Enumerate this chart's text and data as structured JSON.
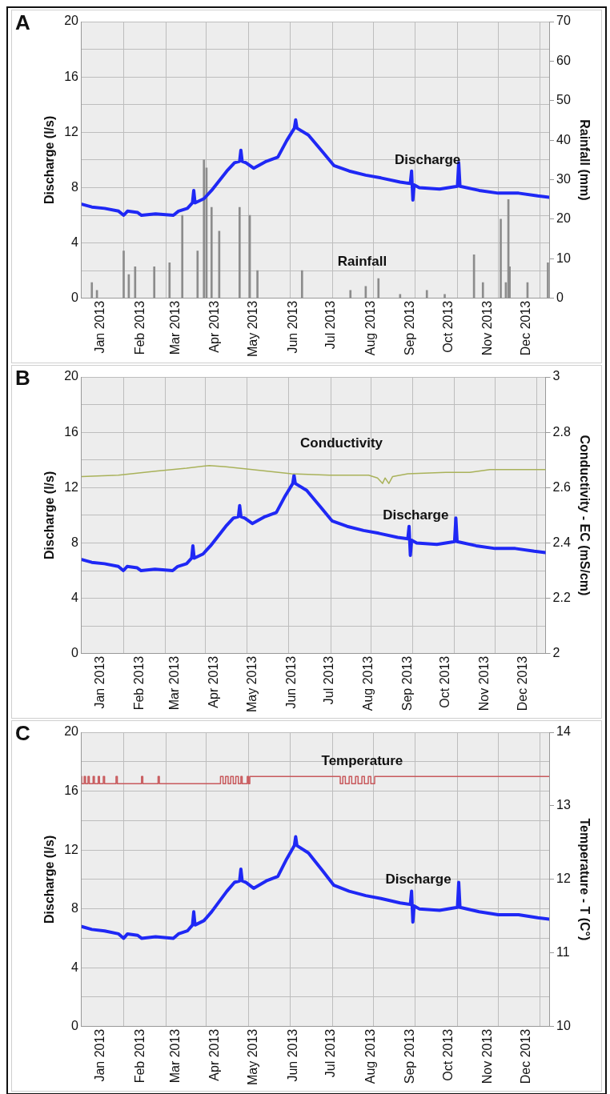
{
  "chart_data": [
    {
      "type": "line",
      "title": "A",
      "ylabel": "Discharge (l/s)",
      "y2label": "Rainfall (mm)",
      "grid": true,
      "marker": "none",
      "xlim": [
        "2012-12-17",
        "2013-12-19"
      ],
      "xticks": [
        {
          "value": "2013-01-01",
          "label": "Jan 2013"
        },
        {
          "value": "2013-01-19",
          "label": null
        },
        {
          "value": "2013-02-01",
          "label": "Feb 2013"
        },
        {
          "value": "2013-02-21",
          "label": null
        },
        {
          "value": "2013-03-01",
          "label": "Mar 2013"
        },
        {
          "value": "2013-03-25",
          "label": null
        },
        {
          "value": "2013-04-01",
          "label": "Apr 2013"
        },
        {
          "value": "2013-04-27",
          "label": null
        },
        {
          "value": "2013-05-01",
          "label": "May 2013"
        },
        {
          "value": "2013-05-30",
          "label": null
        },
        {
          "value": "2013-06-01",
          "label": "Jun 2013"
        },
        {
          "value": "2013-07-01",
          "label": "Jul 2013"
        },
        {
          "value": "2013-07-02",
          "label": null
        },
        {
          "value": "2013-08-01",
          "label": "Aug 2013"
        },
        {
          "value": "2013-08-03",
          "label": null
        },
        {
          "value": "2013-09-01",
          "label": "Sep 2013"
        },
        {
          "value": "2013-09-05",
          "label": null
        },
        {
          "value": "2013-10-01",
          "label": "Oct 2013"
        },
        {
          "value": "2013-10-08",
          "label": null
        },
        {
          "value": "2013-11-01",
          "label": "Nov 2013"
        },
        {
          "value": "2013-11-09",
          "label": null
        },
        {
          "value": "2013-12-01",
          "label": "Dec 2013"
        },
        {
          "value": "2013-12-12",
          "label": null
        }
      ],
      "ylim": [
        0,
        20
      ],
      "yticks": [
        0,
        {
          "value": 2,
          "label": null
        },
        4,
        {
          "value": 6,
          "label": null
        },
        8,
        {
          "value": 10,
          "label": null
        },
        12,
        {
          "value": 14,
          "label": null
        },
        16,
        {
          "value": 18,
          "label": null
        },
        20
      ],
      "y2lim": [
        0,
        70
      ],
      "y2ticks": [
        0,
        10,
        20,
        30,
        40,
        50,
        60,
        70
      ],
      "series": [
        {
          "name": "Rainfall",
          "type": "bar",
          "axis": "y2",
          "color": "#8c8c8c",
          "x": [
            "2012-12-25",
            "2012-12-29",
            "2013-01-19",
            "2013-01-23",
            "2013-01-28",
            "2013-02-12",
            "2013-02-24",
            "2013-03-05",
            "2013-03-06",
            "2013-03-18",
            "2013-03-23",
            "2013-03-25",
            "2013-03-29",
            "2013-04-04",
            "2013-04-20",
            "2013-04-28",
            "2013-05-04",
            "2013-06-08",
            "2013-07-16",
            "2013-07-28",
            "2013-08-07",
            "2013-08-24",
            "2013-09-14",
            "2013-09-28",
            "2013-10-21",
            "2013-10-28",
            "2013-11-11",
            "2013-11-15",
            "2013-11-17",
            "2013-11-18",
            "2013-12-02",
            "2013-12-18"
          ],
          "values": [
            4,
            2,
            12,
            6,
            8,
            8,
            9,
            null,
            21,
            12,
            35,
            33,
            23,
            17,
            23,
            21,
            7,
            7,
            2,
            3,
            5,
            1,
            2,
            1,
            11,
            4,
            20,
            4,
            25,
            8,
            4,
            9
          ]
        },
        {
          "name": "Discharge",
          "color": "#1f28f5",
          "x": [
            "2012-12-17",
            "2012-12-25",
            "2013-01-04",
            "2013-01-15",
            "2013-01-19",
            "2013-01-22",
            "2013-01-30",
            "2013-02-02",
            "2013-02-13",
            "2013-02-27",
            "2013-03-03",
            "2013-03-10",
            "2013-03-14",
            "2013-03-15",
            "2013-03-16",
            "2013-03-23",
            "2013-03-29",
            "2013-04-10",
            "2013-04-16",
            "2013-04-20",
            "2013-04-21",
            "2013-04-22",
            "2013-04-25",
            "2013-05-01",
            "2013-05-11",
            "2013-05-20",
            "2013-05-27",
            "2013-06-02",
            "2013-06-03",
            "2013-06-04",
            "2013-06-13",
            "2013-06-24",
            "2013-07-03",
            "2013-07-15",
            "2013-07-28",
            "2013-08-09",
            "2013-08-24",
            "2013-09-01",
            "2013-09-02",
            "2013-09-03",
            "2013-09-04",
            "2013-09-08",
            "2013-09-24",
            "2013-10-08",
            "2013-10-09",
            "2013-10-10",
            "2013-10-25",
            "2013-11-09",
            "2013-11-25",
            "2013-12-10",
            "2013-12-19"
          ],
          "values": [
            6.8,
            6.6,
            6.5,
            6.3,
            6.0,
            6.3,
            6.2,
            6.0,
            6.1,
            6.0,
            6.3,
            6.5,
            6.9,
            7.8,
            6.9,
            7.2,
            7.8,
            9.2,
            9.8,
            9.9,
            10.7,
            9.9,
            9.8,
            9.4,
            9.9,
            10.2,
            11.4,
            12.3,
            12.9,
            12.3,
            11.8,
            10.6,
            9.6,
            9.2,
            8.9,
            8.7,
            8.4,
            8.3,
            9.2,
            7.1,
            8.2,
            8.0,
            7.9,
            8.1,
            9.8,
            8.1,
            7.8,
            7.6,
            7.6,
            7.4,
            7.3
          ]
        }
      ]
    },
    {
      "type": "line",
      "title": "B",
      "ylabel": "Discharge (l/s)",
      "y2label": "Conductivity - EC (mS/cm)",
      "grid": true,
      "marker": "none",
      "xlim": [
        "2012-12-17",
        "2013-12-19"
      ],
      "xticks": [
        {
          "value": "2013-01-01",
          "label": "Jan 2013"
        },
        {
          "value": "2013-01-19",
          "label": null
        },
        {
          "value": "2013-02-01",
          "label": "Feb 2013"
        },
        {
          "value": "2013-02-21",
          "label": null
        },
        {
          "value": "2013-03-01",
          "label": "Mar 2013"
        },
        {
          "value": "2013-03-25",
          "label": null
        },
        {
          "value": "2013-04-01",
          "label": "Apr 2013"
        },
        {
          "value": "2013-04-27",
          "label": null
        },
        {
          "value": "2013-05-01",
          "label": "May 2013"
        },
        {
          "value": "2013-05-30",
          "label": null
        },
        {
          "value": "2013-06-01",
          "label": "Jun 2013"
        },
        {
          "value": "2013-07-01",
          "label": "Jul 2013"
        },
        {
          "value": "2013-07-02",
          "label": null
        },
        {
          "value": "2013-08-01",
          "label": "Aug 2013"
        },
        {
          "value": "2013-08-03",
          "label": null
        },
        {
          "value": "2013-09-01",
          "label": "Sep 2013"
        },
        {
          "value": "2013-09-05",
          "label": null
        },
        {
          "value": "2013-10-01",
          "label": "Oct 2013"
        },
        {
          "value": "2013-10-08",
          "label": null
        },
        {
          "value": "2013-11-01",
          "label": "Nov 2013"
        },
        {
          "value": "2013-11-09",
          "label": null
        },
        {
          "value": "2013-12-01",
          "label": "Dec 2013"
        },
        {
          "value": "2013-12-12",
          "label": null
        }
      ],
      "ylim": [
        0,
        20
      ],
      "yticks": [
        0,
        {
          "value": 2,
          "label": null
        },
        4,
        {
          "value": 6,
          "label": null
        },
        8,
        {
          "value": 10,
          "label": null
        },
        12,
        {
          "value": 14,
          "label": null
        },
        16,
        {
          "value": 18,
          "label": null
        },
        20
      ],
      "y2lim": [
        2,
        3
      ],
      "y2ticks": [
        2,
        2.2,
        2.4,
        2.6,
        2.8,
        3
      ],
      "series": [
        {
          "name": "Conductivity",
          "axis": "y2",
          "color": "#a9b25a",
          "x": [
            "2012-12-17",
            "2013-01-15",
            "2013-02-15",
            "2013-03-10",
            "2013-03-28",
            "2013-04-10",
            "2013-05-01",
            "2013-06-01",
            "2013-07-01",
            "2013-08-01",
            "2013-08-08",
            "2013-08-12",
            "2013-08-14",
            "2013-08-17",
            "2013-08-20",
            "2013-09-01",
            "2013-10-01",
            "2013-10-20",
            "2013-11-05",
            "2013-12-19"
          ],
          "values": [
            2.64,
            2.645,
            2.66,
            2.67,
            2.68,
            2.675,
            2.665,
            2.65,
            2.645,
            2.645,
            2.635,
            2.615,
            2.635,
            2.615,
            2.64,
            2.65,
            2.655,
            2.655,
            2.665,
            2.665
          ]
        },
        {
          "name": "Discharge",
          "color": "#1f28f5",
          "x": [
            "2012-12-17",
            "2012-12-25",
            "2013-01-04",
            "2013-01-15",
            "2013-01-19",
            "2013-01-22",
            "2013-01-30",
            "2013-02-02",
            "2013-02-13",
            "2013-02-27",
            "2013-03-03",
            "2013-03-10",
            "2013-03-14",
            "2013-03-15",
            "2013-03-16",
            "2013-03-23",
            "2013-03-29",
            "2013-04-10",
            "2013-04-16",
            "2013-04-20",
            "2013-04-21",
            "2013-04-22",
            "2013-04-25",
            "2013-05-01",
            "2013-05-11",
            "2013-05-20",
            "2013-05-27",
            "2013-06-02",
            "2013-06-03",
            "2013-06-04",
            "2013-06-13",
            "2013-06-24",
            "2013-07-03",
            "2013-07-15",
            "2013-07-28",
            "2013-08-09",
            "2013-08-24",
            "2013-09-01",
            "2013-09-02",
            "2013-09-03",
            "2013-09-04",
            "2013-09-08",
            "2013-09-24",
            "2013-10-08",
            "2013-10-09",
            "2013-10-10",
            "2013-10-25",
            "2013-11-09",
            "2013-11-25",
            "2013-12-10",
            "2013-12-19"
          ],
          "values": [
            6.8,
            6.6,
            6.5,
            6.3,
            6.0,
            6.3,
            6.2,
            6.0,
            6.1,
            6.0,
            6.3,
            6.5,
            6.9,
            7.8,
            6.9,
            7.2,
            7.8,
            9.2,
            9.8,
            9.9,
            10.7,
            9.9,
            9.8,
            9.4,
            9.9,
            10.2,
            11.4,
            12.3,
            12.9,
            12.3,
            11.8,
            10.6,
            9.6,
            9.2,
            8.9,
            8.7,
            8.4,
            8.3,
            9.2,
            7.1,
            8.2,
            8.0,
            7.9,
            8.1,
            9.8,
            8.1,
            7.8,
            7.6,
            7.6,
            7.4,
            7.3
          ]
        }
      ]
    },
    {
      "type": "line",
      "title": "C",
      "ylabel": "Discharge (l/s)",
      "y2label": "Temperature - T (C°)",
      "grid": true,
      "marker": "none",
      "xlim": [
        "2012-12-17",
        "2013-12-19"
      ],
      "xticks": [
        {
          "value": "2013-01-01",
          "label": "Jan 2013"
        },
        {
          "value": "2013-01-19",
          "label": null
        },
        {
          "value": "2013-02-01",
          "label": "Feb 2013"
        },
        {
          "value": "2013-02-21",
          "label": null
        },
        {
          "value": "2013-03-01",
          "label": "Mar 2013"
        },
        {
          "value": "2013-03-25",
          "label": null
        },
        {
          "value": "2013-04-01",
          "label": "Apr 2013"
        },
        {
          "value": "2013-04-27",
          "label": null
        },
        {
          "value": "2013-05-01",
          "label": "May 2013"
        },
        {
          "value": "2013-05-30",
          "label": null
        },
        {
          "value": "2013-06-01",
          "label": "Jun 2013"
        },
        {
          "value": "2013-07-01",
          "label": "Jul 2013"
        },
        {
          "value": "2013-07-02",
          "label": null
        },
        {
          "value": "2013-08-01",
          "label": "Aug 2013"
        },
        {
          "value": "2013-08-03",
          "label": null
        },
        {
          "value": "2013-09-01",
          "label": "Sep 2013"
        },
        {
          "value": "2013-09-05",
          "label": null
        },
        {
          "value": "2013-10-01",
          "label": "Oct 2013"
        },
        {
          "value": "2013-10-08",
          "label": null
        },
        {
          "value": "2013-11-01",
          "label": "Nov 2013"
        },
        {
          "value": "2013-11-09",
          "label": null
        },
        {
          "value": "2013-12-01",
          "label": "Dec 2013"
        },
        {
          "value": "2013-12-12",
          "label": null
        }
      ],
      "ylim": [
        0,
        20
      ],
      "yticks": [
        0,
        {
          "value": 2,
          "label": null
        },
        4,
        {
          "value": 6,
          "label": null
        },
        8,
        {
          "value": 10,
          "label": null
        },
        12,
        {
          "value": 14,
          "label": null
        },
        16,
        {
          "value": 18,
          "label": null
        },
        20
      ],
      "y2lim": [
        10,
        14
      ],
      "y2ticks": [
        10,
        11,
        12,
        13,
        14
      ],
      "series": [
        {
          "name": "Temperature",
          "type": "step",
          "axis": "y2",
          "color": "#c8595c",
          "x": [
            "2012-12-17",
            "2012-12-19",
            "2012-12-20",
            "2012-12-22",
            "2012-12-23",
            "2012-12-26",
            "2012-12-27",
            "2012-12-30",
            "2012-12-31",
            "2013-01-03",
            "2013-01-04",
            "2013-01-13",
            "2013-01-14",
            "2013-02-02",
            "2013-02-03",
            "2013-02-15",
            "2013-02-16",
            "2013-04-05",
            "2013-04-07",
            "2013-04-09",
            "2013-04-11",
            "2013-04-13",
            "2013-04-15",
            "2013-04-17",
            "2013-04-19",
            "2013-04-21",
            "2013-04-22",
            "2013-04-26",
            "2013-04-27",
            "2013-04-28",
            "2013-07-08",
            "2013-07-10",
            "2013-07-12",
            "2013-07-15",
            "2013-07-17",
            "2013-07-20",
            "2013-07-22",
            "2013-07-25",
            "2013-07-27",
            "2013-07-30",
            "2013-08-01",
            "2013-08-04",
            "2013-08-07",
            "2013-12-19"
          ],
          "values": [
            13.4,
            13.3,
            13.4,
            13.3,
            13.4,
            13.3,
            13.4,
            13.3,
            13.4,
            13.3,
            13.4,
            13.3,
            13.4,
            13.3,
            13.4,
            13.3,
            13.4,
            13.3,
            13.4,
            13.3,
            13.4,
            13.3,
            13.4,
            13.3,
            13.4,
            13.3,
            13.4,
            13.3,
            13.4,
            13.3,
            13.4,
            13.3,
            13.4,
            13.3,
            13.4,
            13.3,
            13.4,
            13.3,
            13.4,
            13.3,
            13.4,
            13.3,
            13.4,
            13.4
          ]
        },
        {
          "name": "Discharge",
          "color": "#1f28f5",
          "x": [
            "2012-12-17",
            "2012-12-25",
            "2013-01-04",
            "2013-01-15",
            "2013-01-19",
            "2013-01-22",
            "2013-01-30",
            "2013-02-02",
            "2013-02-13",
            "2013-02-27",
            "2013-03-03",
            "2013-03-10",
            "2013-03-14",
            "2013-03-15",
            "2013-03-16",
            "2013-03-23",
            "2013-03-29",
            "2013-04-10",
            "2013-04-16",
            "2013-04-20",
            "2013-04-21",
            "2013-04-22",
            "2013-04-25",
            "2013-05-01",
            "2013-05-11",
            "2013-05-20",
            "2013-05-27",
            "2013-06-02",
            "2013-06-03",
            "2013-06-04",
            "2013-06-13",
            "2013-06-24",
            "2013-07-03",
            "2013-07-15",
            "2013-07-28",
            "2013-08-09",
            "2013-08-24",
            "2013-09-01",
            "2013-09-02",
            "2013-09-03",
            "2013-09-04",
            "2013-09-08",
            "2013-09-24",
            "2013-10-08",
            "2013-10-09",
            "2013-10-10",
            "2013-10-25",
            "2013-11-09",
            "2013-11-25",
            "2013-12-10",
            "2013-12-19"
          ],
          "values": [
            6.8,
            6.6,
            6.5,
            6.3,
            6.0,
            6.3,
            6.2,
            6.0,
            6.1,
            6.0,
            6.3,
            6.5,
            6.9,
            7.8,
            6.9,
            7.2,
            7.8,
            9.2,
            9.8,
            9.9,
            10.7,
            9.9,
            9.8,
            9.4,
            9.9,
            10.2,
            11.4,
            12.3,
            12.9,
            12.3,
            11.8,
            10.6,
            9.6,
            9.2,
            8.9,
            8.7,
            8.4,
            8.3,
            9.2,
            7.1,
            8.2,
            8.0,
            7.9,
            8.1,
            9.8,
            8.1,
            7.8,
            7.6,
            7.6,
            7.4,
            7.3
          ]
        }
      ]
    }
  ]
}
